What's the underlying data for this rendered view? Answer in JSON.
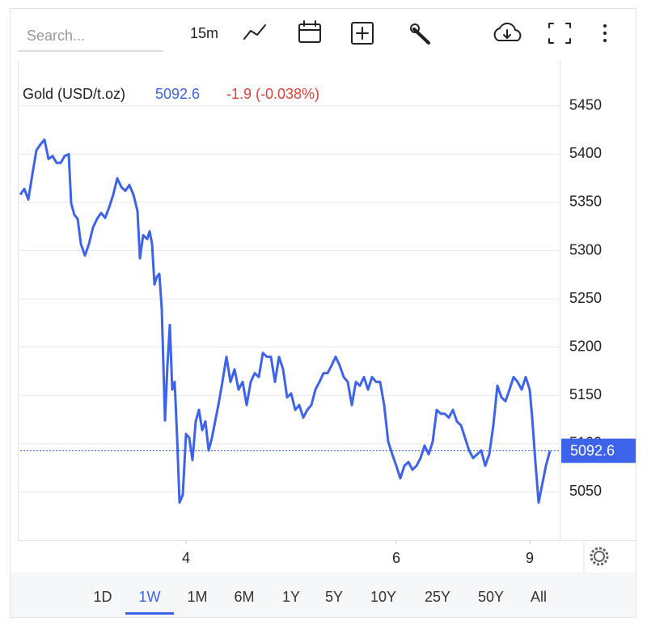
{
  "toolbar": {
    "search_placeholder": "Search...",
    "interval": "15m"
  },
  "chart_data": {
    "type": "line",
    "title": "Gold (USD/t.oz)",
    "last_price": 5092.6,
    "change_label": "-1.9 (-0.038%)",
    "color": "#3d63ea",
    "x": [
      0,
      5,
      10,
      15,
      20,
      25,
      30,
      35,
      40,
      45,
      50,
      55,
      60,
      63,
      67,
      71,
      75,
      80,
      85,
      90,
      95,
      100,
      105,
      110,
      115,
      120,
      125,
      130,
      135,
      140,
      145,
      148,
      152,
      157,
      160,
      163,
      166,
      169,
      172,
      175,
      179,
      182,
      185,
      188,
      191,
      194,
      197,
      201,
      205,
      209,
      213,
      217,
      221,
      225,
      229,
      233,
      237,
      241,
      245,
      250,
      255,
      260,
      265,
      270,
      275,
      280,
      285,
      290,
      295,
      300,
      305,
      310,
      315,
      320,
      325,
      330,
      335,
      340,
      345,
      350,
      355,
      360,
      365,
      370,
      375,
      380,
      385,
      390,
      395,
      400,
      405,
      410,
      415,
      420,
      425,
      430,
      435,
      440,
      445,
      450,
      455,
      460,
      465,
      470,
      475,
      480,
      485,
      490,
      495,
      500,
      505,
      510,
      515,
      520,
      525,
      530,
      535,
      540,
      545,
      550,
      555,
      560,
      565,
      570,
      575,
      580,
      585,
      590,
      595,
      600,
      605,
      610,
      615,
      620,
      625,
      630,
      633,
      637,
      641,
      645,
      650,
      655
    ],
    "values": [
      5358,
      5364,
      5353,
      5379,
      5404,
      5410,
      5415,
      5395,
      5398,
      5391,
      5391,
      5398,
      5400,
      5349,
      5337,
      5333,
      5307,
      5295,
      5307,
      5324,
      5333,
      5339,
      5334,
      5345,
      5358,
      5375,
      5366,
      5362,
      5368,
      5358,
      5341,
      5292,
      5316,
      5312,
      5320,
      5307,
      5265,
      5273,
      5276,
      5240,
      5124,
      5181,
      5223,
      5156,
      5164,
      5106,
      5039,
      5047,
      5110,
      5106,
      5083,
      5123,
      5135,
      5114,
      5123,
      5093,
      5106,
      5123,
      5140,
      5164,
      5190,
      5164,
      5177,
      5156,
      5164,
      5140,
      5164,
      5173,
      5169,
      5194,
      5190,
      5190,
      5164,
      5190,
      5177,
      5148,
      5152,
      5135,
      5140,
      5127,
      5135,
      5140,
      5156,
      5164,
      5173,
      5173,
      5181,
      5190,
      5181,
      5169,
      5164,
      5140,
      5164,
      5160,
      5169,
      5156,
      5169,
      5164,
      5164,
      5140,
      5102,
      5089,
      5077,
      5064,
      5077,
      5081,
      5073,
      5077,
      5085,
      5098,
      5089,
      5102,
      5135,
      5131,
      5131,
      5127,
      5135,
      5123,
      5119,
      5106,
      5093,
      5085,
      5089,
      5093,
      5077,
      5089,
      5119,
      5160,
      5148,
      5144,
      5156,
      5169,
      5164,
      5156,
      5169,
      5156,
      5127,
      5081,
      5039,
      5056,
      5077,
      5092.6
    ],
    "xlim": [
      0,
      666
    ],
    "xticks": [
      {
        "value": 205,
        "label": "4"
      },
      {
        "value": 465,
        "label": "6"
      },
      {
        "value": 630,
        "label": "9"
      }
    ],
    "ylim": [
      5000,
      5480
    ],
    "yticks": [
      5050,
      5100,
      5150,
      5200,
      5250,
      5300,
      5350,
      5400,
      5450
    ],
    "grid": true
  },
  "ranges": [
    "1D",
    "1W",
    "1M",
    "6M",
    "1Y",
    "5Y",
    "10Y",
    "25Y",
    "50Y",
    "All"
  ],
  "selected_range": 1
}
